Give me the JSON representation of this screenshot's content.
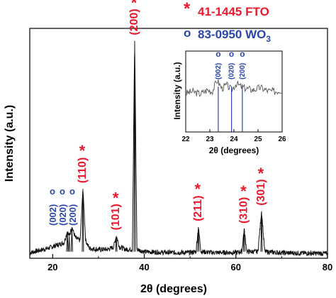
{
  "legend": {
    "fto_marker": "*",
    "fto_text": "41-1445 FTO",
    "wo3_marker": "o",
    "wo3_text": "83-0950 WO",
    "wo3_subscript": "3"
  },
  "colors": {
    "fto": "#e8192c",
    "wo3": "#2a46a8",
    "trace": "#111111"
  },
  "chart_data": [
    {
      "type": "line",
      "xlabel": "2θ (degrees)",
      "ylabel": "Intensity (a.u.)",
      "xlim": [
        15,
        80
      ],
      "xticks": [
        20,
        40,
        60,
        80
      ],
      "xtick_labels": [
        "20",
        "40",
        "60",
        "80"
      ],
      "ylim": [
        0,
        100
      ],
      "series": [
        {
          "x": [
            15,
            17,
            19,
            21,
            22.5,
            23.2,
            23.6,
            24.2,
            25,
            26,
            26.6,
            27.2,
            28,
            30,
            32,
            33.3,
            33.9,
            34.6,
            36,
            37.4,
            37.9,
            38.4,
            40,
            45,
            50,
            51.3,
            51.8,
            52.4,
            55,
            60,
            61.3,
            61.8,
            62.4,
            64.8,
            65.6,
            66.3,
            70,
            75,
            80
          ],
          "y": [
            1.5,
            2.5,
            3.5,
            5,
            6,
            11,
            9,
            13,
            8,
            7,
            30,
            7,
            3.5,
            3,
            3,
            4,
            9,
            4,
            3,
            3,
            96,
            3,
            2,
            1.6,
            1.6,
            2,
            13,
            2,
            1.6,
            1.6,
            2,
            12,
            2,
            2,
            20,
            2,
            1.5,
            1.3,
            1.2
          ]
        }
      ],
      "peak_labels": [
        {
          "hkl": "(110)",
          "marker": "*",
          "x": 26.6,
          "y": 30
        },
        {
          "hkl": "(101)",
          "marker": "*",
          "x": 33.9,
          "y": 9
        },
        {
          "hkl": "(200)",
          "marker": "*",
          "x": 37.9,
          "y": 96
        },
        {
          "hkl": "(211)",
          "marker": "*",
          "x": 51.8,
          "y": 13
        },
        {
          "hkl": "(310)",
          "marker": "*",
          "x": 61.8,
          "y": 12
        },
        {
          "hkl": "(301)",
          "marker": "*",
          "x": 65.6,
          "y": 20
        }
      ],
      "wo3_labels": [
        {
          "hkl": "(002)",
          "marker": "o",
          "x": 23.1
        },
        {
          "hkl": "(020)",
          "marker": "o",
          "x": 23.7
        },
        {
          "hkl": "(200)",
          "marker": "o",
          "x": 24.3
        }
      ]
    },
    {
      "type": "line",
      "xlabel": "2θ (degrees)",
      "ylabel": "Intensity (a.u.)",
      "xlim": [
        22,
        26
      ],
      "xticks": [
        22,
        23,
        24,
        25,
        26
      ],
      "xtick_labels": [
        "22",
        "23",
        "24",
        "25",
        "26"
      ],
      "ylim": [
        0,
        100
      ],
      "series": [
        {
          "x": [
            22,
            22.3,
            22.6,
            22.9,
            23.1,
            23.3,
            23.5,
            23.7,
            23.9,
            24.1,
            24.3,
            24.5,
            24.8,
            25.1,
            25.4,
            25.7,
            26
          ],
          "y": [
            48,
            50,
            47,
            52,
            50,
            64,
            54,
            58,
            52,
            60,
            56,
            54,
            52,
            55,
            51,
            50,
            52
          ]
        }
      ],
      "peak_markers": [
        {
          "hkl": "(002)",
          "marker": "o",
          "x": 23.35
        },
        {
          "hkl": "(020)",
          "marker": "o",
          "x": 23.9
        },
        {
          "hkl": "(200)",
          "marker": "o",
          "x": 24.35
        }
      ]
    }
  ]
}
